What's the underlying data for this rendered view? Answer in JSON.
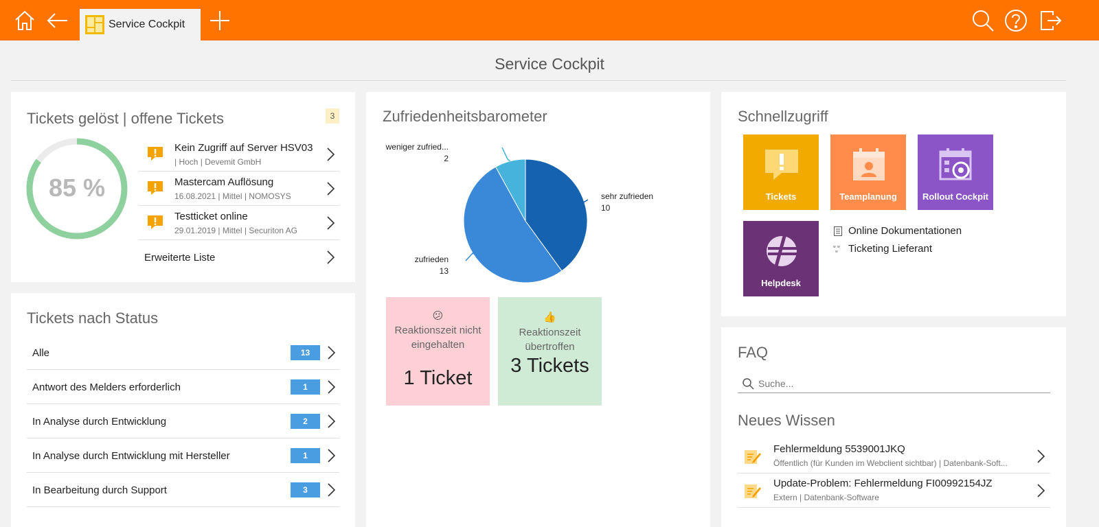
{
  "topbar": {
    "tab_label": "Service Cockpit",
    "icons": [
      "home-icon",
      "back-arrow-icon",
      "plus-icon",
      "search-icon",
      "help-icon",
      "logout-icon"
    ],
    "color": "#ff7300"
  },
  "page": {
    "title": "Service Cockpit"
  },
  "tickets_panel": {
    "title": "Tickets gelöst | offene Tickets",
    "count": "3",
    "solved_percent_label": "85 %",
    "solved_fraction": 0.85,
    "tickets": [
      {
        "title": "Kein Zugriff auf Server HSV03",
        "sub": "| Hoch | Devemit GmbH"
      },
      {
        "title": "Mastercam Auflösung",
        "sub": "16.08.2021 | Mittel | NOMOSYS"
      },
      {
        "title": "Testticket online",
        "sub": "29.01.2019 | Mittel | Securiton AG"
      }
    ],
    "extended_list_label": "Erweiterte Liste"
  },
  "status_panel": {
    "title": "Tickets nach Status",
    "rows": [
      {
        "label": "Alle",
        "count": "13"
      },
      {
        "label": "Antwort des Melders erforderlich",
        "count": "1"
      },
      {
        "label": "In Analyse durch Entwicklung",
        "count": "2"
      },
      {
        "label": "In Analyse durch Entwicklung mit Hersteller",
        "count": "1"
      },
      {
        "label": "In Bearbeitung durch Support",
        "count": "3"
      }
    ]
  },
  "satisfaction_panel": {
    "title": "Zufriedenheitsbarometer",
    "kpi_bad": {
      "emoji": "😕",
      "label": "Reaktionszeit nicht eingehalten",
      "value": "1 Ticket",
      "color": "#fdd0d6"
    },
    "kpi_good": {
      "emoji": "👍",
      "label": "Reaktionszeit übertroffen",
      "value": "3 Tickets",
      "color": "#cfebd6"
    }
  },
  "chart_data": {
    "type": "pie",
    "title": "",
    "series": [
      {
        "name": "sehr zufrieden",
        "value": 10,
        "label": "10",
        "color": "#1462b0"
      },
      {
        "name": "zufrieden",
        "value": 13,
        "label": "13",
        "color": "#3a89d8"
      },
      {
        "name": "weniger zufrieden...",
        "display_name": "weniger zufried...",
        "value": 2,
        "label": "2",
        "color": "#45b3db"
      }
    ]
  },
  "quick_access": {
    "title": "Schnellzugriff",
    "tiles": [
      {
        "label": "Tickets",
        "color": "#f0aa00"
      },
      {
        "label": "Teamplanung",
        "color": "#ff8c4a"
      },
      {
        "label": "Rollout Cockpit",
        "color": "#8b55c7"
      },
      {
        "label": "Helpdesk",
        "color": "#6b3275"
      }
    ],
    "links": [
      {
        "label": "Online Dokumentationen"
      },
      {
        "label": "Ticketing Lieferant"
      }
    ]
  },
  "faq": {
    "title": "FAQ",
    "search_placeholder": "Suche...",
    "knowledge_title": "Neues Wissen",
    "items": [
      {
        "title": "Fehlermeldung 5539001JKQ",
        "sub": "Öffentlich (für Kunden im Webclient sichtbar) | Datenbank-Soft..."
      },
      {
        "title": "Update-Problem: Fehlermeldung FI00992154JZ",
        "sub": "Extern | Datenbank-Software"
      }
    ]
  }
}
